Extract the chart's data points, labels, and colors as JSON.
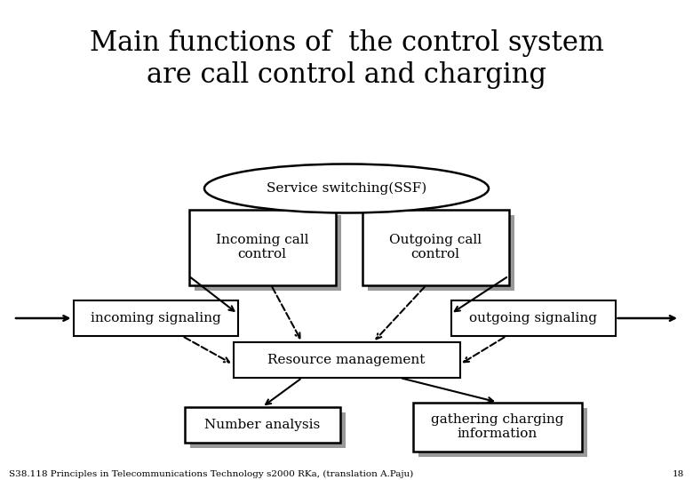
{
  "title_line1": "Main functions of  the control system",
  "title_line2": "are call control and charging",
  "title_fontsize": 22,
  "title_font": "DejaVu Serif",
  "bg_color": "#ffffff",
  "ssf_label": "Service switching(SSF)",
  "incoming_box_label": "Incoming call\ncontrol",
  "outgoing_box_label": "Outgoing call\ncontrol",
  "inc_sig_label": "incoming signaling",
  "out_sig_label": "outgoing signaling",
  "res_mgmt_label": "Resource management",
  "num_analysis_label": "Number analysis",
  "gather_label": "gathering charging\ninformation",
  "footer": "S38.118 Principles in Telecommunications Technology s2000 RKa, (translation A.Paju)",
  "page_num": "18",
  "footer_fontsize": 7.5,
  "body_fontsize": 11
}
